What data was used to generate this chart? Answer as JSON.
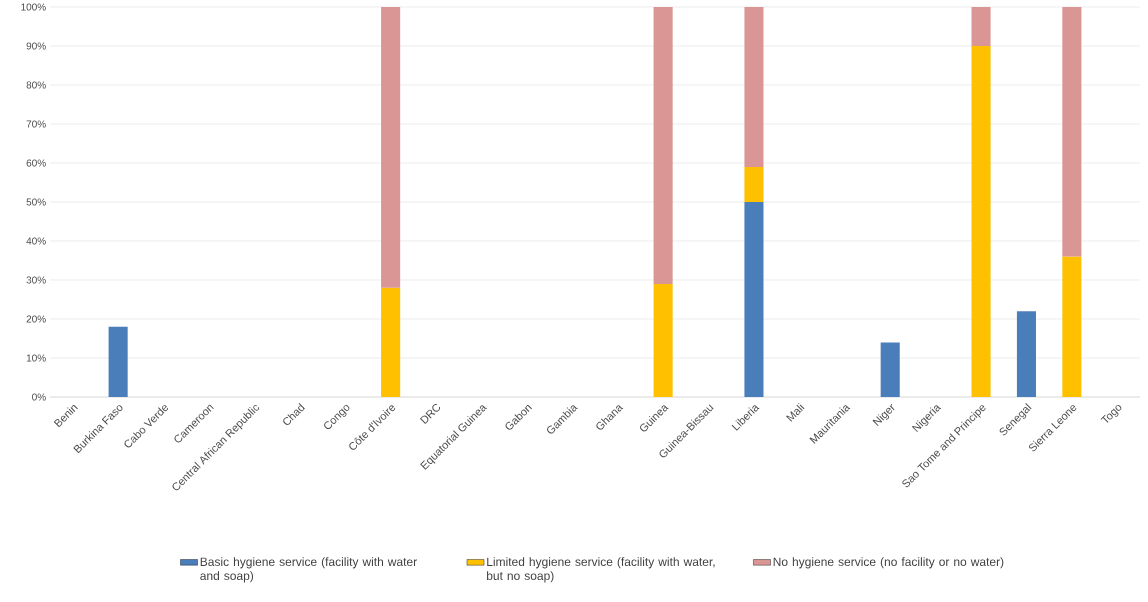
{
  "chart_data": {
    "type": "bar",
    "stacked": true,
    "categories": [
      "Benin",
      "Burkina Faso",
      "Cabo Verde",
      "Cameroon",
      "Central African Republic",
      "Chad",
      "Congo",
      "Côte d'Ivoire",
      "DRC",
      "Equatorial Guinea",
      "Gabon",
      "Gambia",
      "Ghana",
      "Guinea",
      "Guinea-Bissau",
      "Liberia",
      "Mali",
      "Mauritania",
      "Niger",
      "Nigeria",
      "Sao Tome and Principe",
      "Senegal",
      "Sierra Leone",
      "Togo"
    ],
    "series": [
      {
        "name": "Basic hygiene service (facility with water and soap)",
        "color": "#4a7ebb",
        "values": [
          null,
          18,
          null,
          null,
          null,
          null,
          null,
          null,
          null,
          null,
          null,
          null,
          null,
          null,
          null,
          50,
          null,
          null,
          14,
          null,
          null,
          22,
          null,
          null
        ]
      },
      {
        "name": "Limited hygiene service (facility with water, but no soap)",
        "color": "#ffc000",
        "values": [
          null,
          null,
          null,
          null,
          null,
          null,
          null,
          28,
          null,
          null,
          null,
          null,
          null,
          29,
          null,
          9,
          null,
          null,
          null,
          null,
          90,
          null,
          36,
          null
        ]
      },
      {
        "name": "No hygiene service (no facility or no water)",
        "color": "#d99694",
        "values": [
          null,
          null,
          null,
          null,
          null,
          null,
          null,
          72,
          null,
          null,
          null,
          null,
          null,
          71,
          null,
          41,
          null,
          null,
          null,
          null,
          10,
          null,
          64,
          null
        ]
      }
    ],
    "ylim": [
      0,
      100
    ],
    "yticks": [
      {
        "value": 0,
        "label": "0%"
      },
      {
        "value": 10,
        "label": "10%"
      },
      {
        "value": 20,
        "label": "20%"
      },
      {
        "value": 30,
        "label": "30%"
      },
      {
        "value": 40,
        "label": "40%"
      },
      {
        "value": 50,
        "label": "50%"
      },
      {
        "value": 60,
        "label": "60%"
      },
      {
        "value": 70,
        "label": "70%"
      },
      {
        "value": 80,
        "label": "80%"
      },
      {
        "value": 90,
        "label": "90%"
      },
      {
        "value": 100,
        "label": "100%"
      }
    ],
    "grid": "y",
    "legend": "bottom"
  }
}
